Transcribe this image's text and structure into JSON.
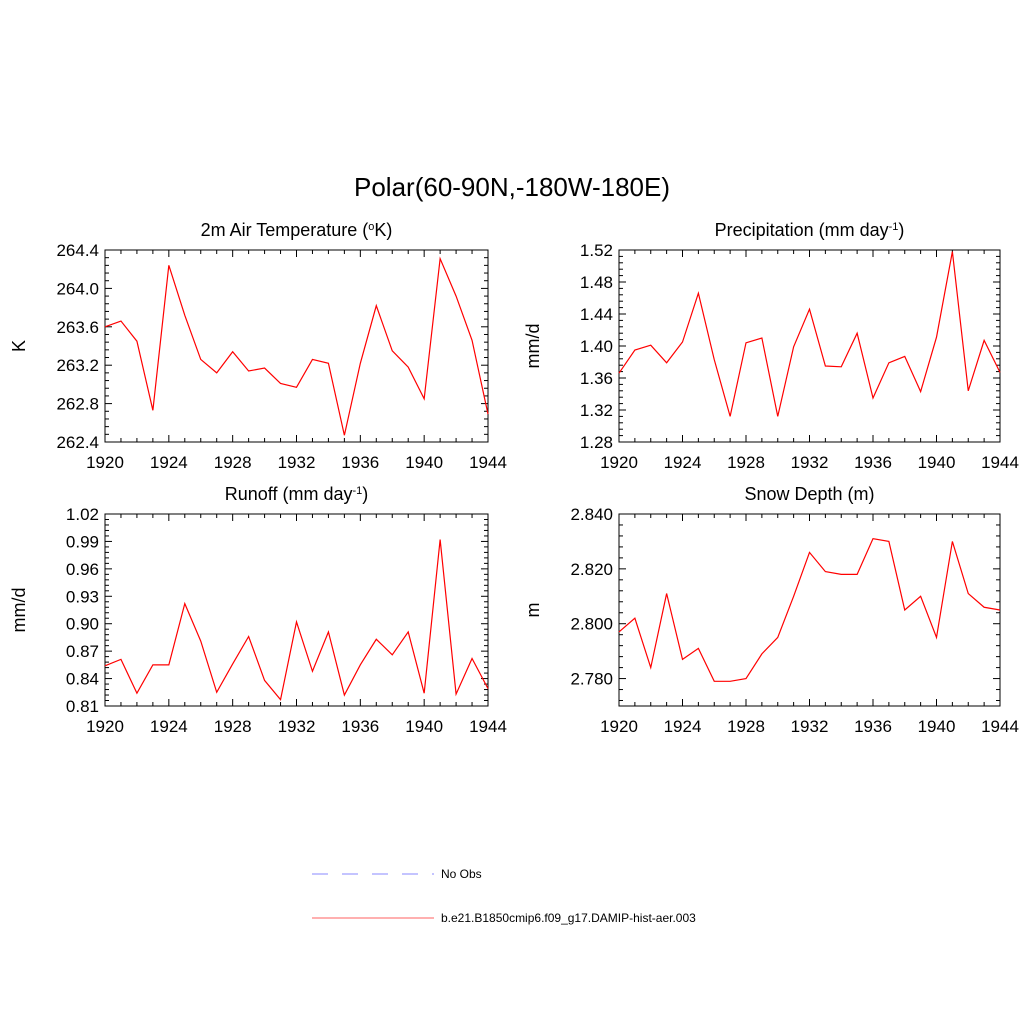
{
  "title": "Polar(60-90N,-180W-180E)",
  "legend": {
    "placement": "bottom-center",
    "items": [
      {
        "name": "No Obs",
        "color": "#a0a0ff",
        "dash": "dashed"
      },
      {
        "name": "b.e21.B1850cmip6.f09_g17.DAMIP-hist-aer.003",
        "color": "#ff8080",
        "dash": "solid"
      }
    ]
  },
  "line_color": "#ff0000",
  "chart_data": [
    {
      "type": "line",
      "title_main": "2m Air Temperature (",
      "title_sup_pre": "o",
      "title_rest": "K)",
      "ylabel": "K",
      "xlim": [
        1920,
        1944
      ],
      "ylim": [
        262.4,
        264.4
      ],
      "xticks": [
        "1920",
        "1924",
        "1928",
        "1932",
        "1936",
        "1940",
        "1944"
      ],
      "yticks": [
        "262.4",
        "262.8",
        "263.2",
        "263.6",
        "264.0",
        "264.4"
      ],
      "x": [
        1920,
        1921,
        1922,
        1923,
        1924,
        1925,
        1926,
        1927,
        1928,
        1929,
        1930,
        1931,
        1932,
        1933,
        1934,
        1935,
        1936,
        1937,
        1938,
        1939,
        1940,
        1941,
        1942,
        1943,
        1944
      ],
      "y": [
        263.6,
        263.66,
        263.45,
        262.73,
        264.24,
        263.72,
        263.26,
        263.12,
        263.34,
        263.14,
        263.17,
        263.01,
        262.97,
        263.26,
        263.22,
        262.47,
        263.22,
        263.82,
        263.35,
        263.18,
        262.85,
        264.31,
        263.92,
        263.46,
        262.69
      ]
    },
    {
      "type": "line",
      "title_main": "Precipitation (mm day",
      "title_sup": "-1",
      "title_rest": ")",
      "ylabel": "mm/d",
      "xlim": [
        1920,
        1944
      ],
      "ylim": [
        1.28,
        1.52
      ],
      "xticks": [
        "1920",
        "1924",
        "1928",
        "1932",
        "1936",
        "1940",
        "1944"
      ],
      "yticks": [
        "1.28",
        "1.32",
        "1.36",
        "1.40",
        "1.44",
        "1.48",
        "1.52"
      ],
      "x": [
        1920,
        1921,
        1922,
        1923,
        1924,
        1925,
        1926,
        1927,
        1928,
        1929,
        1930,
        1931,
        1932,
        1933,
        1934,
        1935,
        1936,
        1937,
        1938,
        1939,
        1940,
        1941,
        1942,
        1943,
        1944
      ],
      "y": [
        1.366,
        1.395,
        1.401,
        1.379,
        1.405,
        1.466,
        1.383,
        1.312,
        1.404,
        1.41,
        1.312,
        1.399,
        1.446,
        1.375,
        1.374,
        1.416,
        1.335,
        1.379,
        1.387,
        1.343,
        1.411,
        1.518,
        1.344,
        1.407,
        1.367
      ]
    },
    {
      "type": "line",
      "title_main": "Runoff (mm day",
      "title_sup": "-1",
      "title_rest": ")",
      "ylabel": "mm/d",
      "xlim": [
        1920,
        1944
      ],
      "ylim": [
        0.81,
        1.02
      ],
      "xticks": [
        "1920",
        "1924",
        "1928",
        "1932",
        "1936",
        "1940",
        "1944"
      ],
      "yticks": [
        "0.81",
        "0.84",
        "0.87",
        "0.90",
        "0.93",
        "0.96",
        "0.99",
        "1.02"
      ],
      "x": [
        1920,
        1921,
        1922,
        1923,
        1924,
        1925,
        1926,
        1927,
        1928,
        1929,
        1930,
        1931,
        1932,
        1933,
        1934,
        1935,
        1936,
        1937,
        1938,
        1939,
        1940,
        1941,
        1942,
        1943,
        1944
      ],
      "y": [
        0.854,
        0.861,
        0.824,
        0.855,
        0.855,
        0.922,
        0.881,
        0.825,
        0.856,
        0.886,
        0.838,
        0.817,
        0.902,
        0.848,
        0.891,
        0.822,
        0.855,
        0.883,
        0.866,
        0.891,
        0.824,
        0.992,
        0.823,
        0.862,
        0.829
      ]
    },
    {
      "type": "line",
      "title_main": "Snow Depth (m)",
      "ylabel": "m",
      "xlim": [
        1920,
        1944
      ],
      "ylim": [
        2.77,
        2.84
      ],
      "xticks": [
        "1920",
        "1924",
        "1928",
        "1932",
        "1936",
        "1940",
        "1944"
      ],
      "yticks": [
        "2.780",
        "2.800",
        "2.820",
        "2.840"
      ],
      "x": [
        1920,
        1921,
        1922,
        1923,
        1924,
        1925,
        1926,
        1927,
        1928,
        1929,
        1930,
        1931,
        1932,
        1933,
        1934,
        1935,
        1936,
        1937,
        1938,
        1939,
        1940,
        1941,
        1942,
        1943,
        1944
      ],
      "y": [
        2.797,
        2.802,
        2.784,
        2.811,
        2.787,
        2.791,
        2.779,
        2.779,
        2.78,
        2.789,
        2.795,
        2.81,
        2.826,
        2.819,
        2.818,
        2.818,
        2.831,
        2.83,
        2.805,
        2.81,
        2.795,
        2.83,
        2.811,
        2.806,
        2.805
      ]
    }
  ]
}
